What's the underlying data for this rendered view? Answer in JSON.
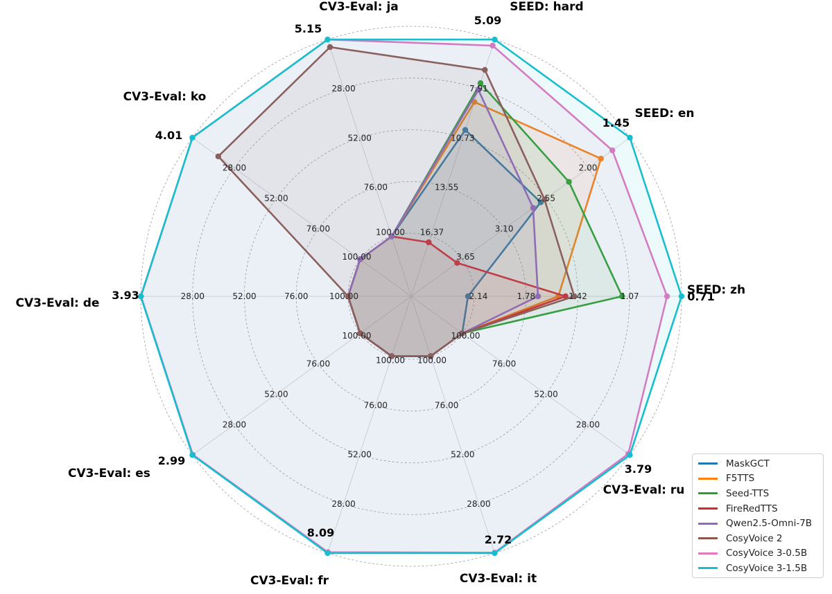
{
  "chart_data": {
    "type": "radar",
    "metric_note": "",
    "axes": [
      {
        "label": "SEED: zh",
        "best_label": "0.71",
        "worst_label": "2.14",
        "inverted_ticks": [
          "1.07",
          "1.42",
          "1.78"
        ],
        "ring_ticks": []
      },
      {
        "label": "SEED: en",
        "best_label": "1.45",
        "worst_label": "3.65",
        "inverted_ticks": [
          "2.00",
          "2.55",
          "3.10"
        ],
        "ring_ticks": []
      },
      {
        "label": "SEED: hard",
        "best_label": "5.09",
        "worst_label": "16.37",
        "inverted_ticks": [
          "7.91",
          "10.73",
          "13.55"
        ],
        "ring_ticks": []
      },
      {
        "label": "CV3-Eval: ja",
        "best_label": "5.15",
        "worst_label": "100.00",
        "inverted_ticks": [
          "28.00",
          "52.00",
          "76.00"
        ],
        "ring_ticks": []
      },
      {
        "label": "CV3-Eval: ko",
        "best_label": "4.01",
        "worst_label": "100.00",
        "inverted_ticks": [
          "28.00",
          "52.00",
          "76.00"
        ],
        "ring_ticks": []
      },
      {
        "label": "CV3-Eval: de",
        "best_label": "3.93",
        "worst_label": "100.00",
        "inverted_ticks": [
          "28.00",
          "52.00",
          "76.00"
        ],
        "ring_ticks": []
      },
      {
        "label": "CV3-Eval: es",
        "best_label": "2.99",
        "worst_label": "100.00",
        "inverted_ticks": [
          "28.00",
          "52.00",
          "76.00"
        ],
        "ring_ticks": []
      },
      {
        "label": "CV3-Eval: fr",
        "best_label": "8.09",
        "worst_label": "100.00",
        "inverted_ticks": [
          "28.00",
          "52.00",
          "76.00"
        ],
        "ring_ticks": []
      },
      {
        "label": "CV3-Eval: it",
        "best_label": "2.72",
        "worst_label": "100.00",
        "inverted_ticks": [
          "28.00",
          "52.00",
          "76.00"
        ],
        "ring_ticks": []
      },
      {
        "label": "CV3-Eval: ru",
        "best_label": "3.79",
        "worst_label": "100.00",
        "inverted_ticks": [
          "28.00",
          "52.00",
          "76.00"
        ],
        "ring_ticks": []
      }
    ],
    "axis_ranges": [
      [
        2.14,
        0.71
      ],
      [
        3.65,
        1.45
      ],
      [
        16.37,
        5.09
      ],
      [
        100,
        5.15
      ],
      [
        100,
        4.01
      ],
      [
        100,
        3.93
      ],
      [
        100,
        2.99
      ],
      [
        100,
        8.09
      ],
      [
        100,
        2.72
      ],
      [
        100,
        3.79
      ]
    ],
    "series": [
      {
        "name": "MaskGCT",
        "color": "#1f77b4",
        "values": [
          2.27,
          2.62,
          10.27,
          100,
          100,
          100,
          100,
          100,
          100,
          100
        ]
      },
      {
        "name": "F5TTS",
        "color": "#ff7f0e",
        "values": [
          1.56,
          1.83,
          8.67,
          100,
          100,
          100,
          100,
          100,
          100,
          100
        ]
      },
      {
        "name": "Seed-TTS",
        "color": "#2ca02c",
        "values": [
          1.12,
          2.25,
          7.59,
          100,
          100,
          100,
          100,
          100,
          100,
          100
        ]
      },
      {
        "name": "FireRedTTS",
        "color": "#d62728",
        "values": [
          1.51,
          3.82,
          17.45,
          100,
          100,
          100,
          100,
          100,
          100,
          100
        ]
      },
      {
        "name": "Qwen2.5-Omni-7B",
        "color": "#9467bd",
        "values": [
          1.7,
          2.72,
          7.97,
          100,
          100,
          100,
          100,
          100,
          100,
          100
        ]
      },
      {
        "name": "CosyVoice 2",
        "color": "#8c564b",
        "values": [
          1.45,
          2.57,
          6.83,
          8.78,
          18.83,
          100,
          100,
          100,
          100,
          100
        ]
      },
      {
        "name": "CosyVoice 3-0.5B",
        "color": "#e377c2",
        "values": [
          0.81,
          1.68,
          5.44,
          5.15,
          4.01,
          4.07,
          3.23,
          8.53,
          2.92,
          4.71
        ]
      },
      {
        "name": "CosyVoice 3-1.5B",
        "color": "#17becf",
        "values": [
          0.71,
          1.45,
          5.09,
          5.15,
          4.01,
          3.93,
          2.99,
          8.09,
          2.72,
          3.79
        ]
      }
    ]
  }
}
